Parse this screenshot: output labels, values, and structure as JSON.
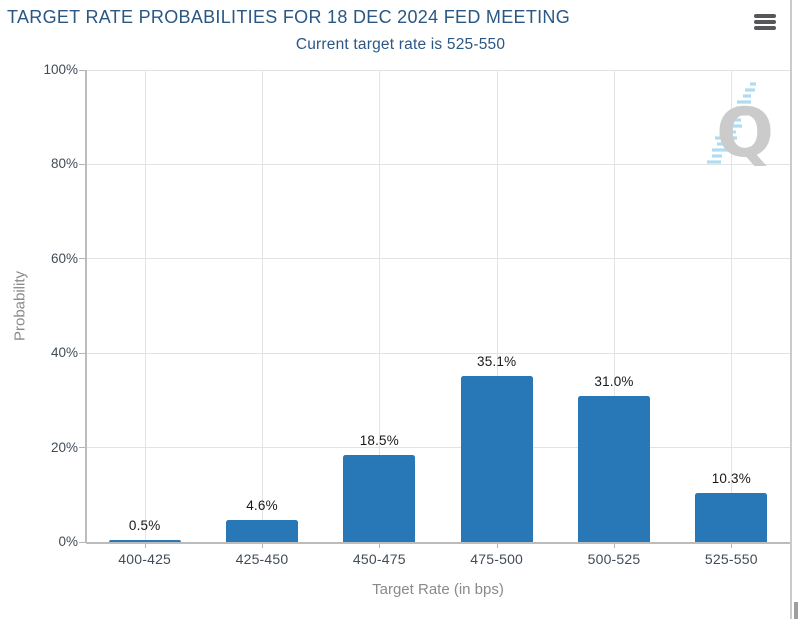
{
  "header": {
    "title": "TARGET RATE PROBABILITIES FOR 18 DEC 2024 FED MEETING",
    "subtitle": "Current target rate is 525-550"
  },
  "watermark": {
    "letter": "Q"
  },
  "chart_data": {
    "type": "bar",
    "title": "TARGET RATE PROBABILITIES FOR 18 DEC 2024 FED MEETING",
    "subtitle": "Current target rate is 525-550",
    "categories": [
      "400-425",
      "425-450",
      "450-475",
      "475-500",
      "500-525",
      "525-550"
    ],
    "values": [
      0.5,
      4.6,
      18.5,
      35.1,
      31.0,
      10.3
    ],
    "value_labels": [
      "0.5%",
      "4.6%",
      "18.5%",
      "35.1%",
      "31.0%",
      "10.3%"
    ],
    "xlabel": "Target Rate (in bps)",
    "ylabel": "Probability",
    "ylim": [
      0,
      100
    ],
    "ytick_values": [
      0,
      20,
      40,
      60,
      80,
      100
    ],
    "ytick_labels": [
      "0%",
      "20%",
      "40%",
      "60%",
      "80%",
      "100%"
    ],
    "grid": true,
    "legend": "none",
    "bar_color": "#2878b8"
  },
  "colors": {
    "title": "#2a5783",
    "bar": "#2878b8",
    "gridline": "#e3e3e3",
    "axis": "#bcbcbc",
    "tick_label": "#414c58",
    "axis_title": "#8a8a8a",
    "watermark_gray": "#c9c9c9",
    "watermark_blue": "#aadcf2"
  }
}
